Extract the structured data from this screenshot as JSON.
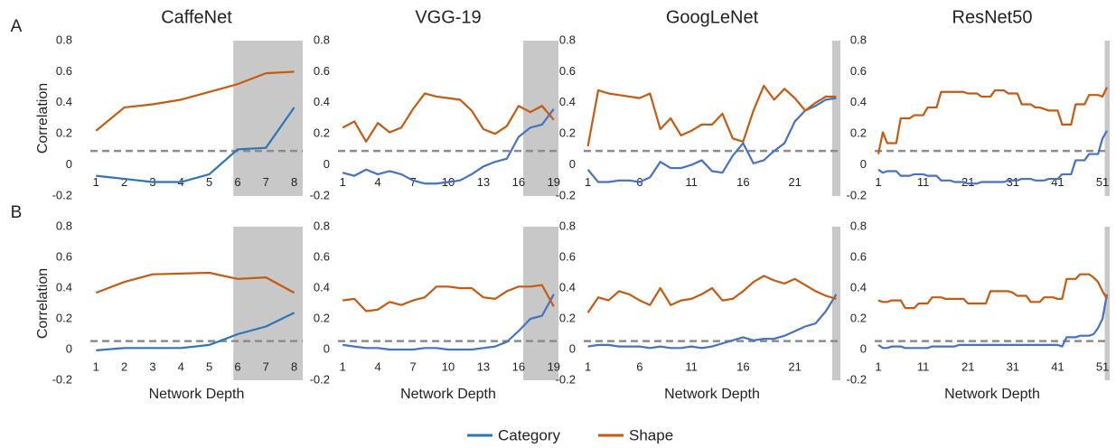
{
  "chart_data": [
    {
      "type": "line",
      "title": "CaffeNet",
      "panel_label": "A",
      "y_label": "Correlation",
      "x": [
        1,
        2,
        3,
        4,
        5,
        6,
        7,
        8
      ],
      "xlim": [
        0.8,
        8.3
      ],
      "xticks": [
        1,
        2,
        3,
        4,
        5,
        6,
        7,
        8
      ],
      "ylim": [
        -0.2,
        0.8
      ],
      "yticks": [
        -0.2,
        0,
        0.2,
        0.4,
        0.6,
        0.8
      ],
      "reference_line": 0.09,
      "shaded_range": [
        5.85,
        8.3
      ],
      "series": [
        {
          "name": "Category",
          "color": "#2e75b6",
          "values": [
            -0.07,
            -0.09,
            -0.11,
            -0.11,
            -0.06,
            0.1,
            0.11,
            0.37
          ]
        },
        {
          "name": "Shape",
          "color": "#c55a11",
          "values": [
            0.22,
            0.37,
            0.39,
            0.42,
            0.47,
            0.52,
            0.59,
            0.6
          ]
        }
      ]
    },
    {
      "type": "line",
      "title": "VGG-19",
      "x": [
        1,
        2,
        3,
        4,
        5,
        6,
        7,
        8,
        9,
        10,
        11,
        12,
        13,
        14,
        15,
        16,
        17,
        18,
        19
      ],
      "xlim": [
        0.6,
        19.4
      ],
      "xticks": [
        1,
        4,
        7,
        10,
        13,
        16,
        19
      ],
      "ylim": [
        -0.2,
        0.8
      ],
      "yticks": [
        -0.2,
        0,
        0.2,
        0.4,
        0.6,
        0.8
      ],
      "reference_line": 0.09,
      "shaded_range": [
        16.4,
        19.4
      ],
      "series": [
        {
          "name": "Category",
          "color": "#4472c4",
          "values": [
            -0.05,
            -0.07,
            -0.03,
            -0.06,
            -0.04,
            -0.06,
            -0.1,
            -0.12,
            -0.12,
            -0.11,
            -0.1,
            -0.06,
            -0.01,
            0.02,
            0.04,
            0.18,
            0.24,
            0.26,
            0.36
          ]
        },
        {
          "name": "Shape",
          "color": "#c55a11",
          "values": [
            0.24,
            0.28,
            0.15,
            0.27,
            0.21,
            0.24,
            0.36,
            0.46,
            0.44,
            0.43,
            0.42,
            0.35,
            0.23,
            0.2,
            0.25,
            0.38,
            0.34,
            0.38,
            0.29
          ]
        }
      ]
    },
    {
      "type": "line",
      "title": "GoogLeNet",
      "x": [
        1,
        2,
        3,
        4,
        5,
        6,
        7,
        8,
        9,
        10,
        11,
        12,
        13,
        14,
        15,
        16,
        17,
        18,
        19,
        20,
        21,
        22,
        23,
        24,
        25
      ],
      "xlim": [
        0.6,
        25.4
      ],
      "xticks": [
        1,
        6,
        11,
        16,
        21
      ],
      "ylim": [
        -0.2,
        0.8
      ],
      "yticks": [
        -0.2,
        0,
        0.2,
        0.4,
        0.6,
        0.8
      ],
      "reference_line": 0.09,
      "shaded_range": [
        24.6,
        25.4
      ],
      "series": [
        {
          "name": "Category",
          "color": "#4472c4",
          "values": [
            -0.03,
            -0.11,
            -0.11,
            -0.1,
            -0.1,
            -0.11,
            -0.08,
            0.02,
            -0.02,
            -0.02,
            0.0,
            0.03,
            -0.04,
            -0.05,
            0.06,
            0.14,
            0.01,
            0.03,
            0.09,
            0.14,
            0.28,
            0.35,
            0.38,
            0.42,
            0.43
          ]
        },
        {
          "name": "Shape",
          "color": "#c55a11",
          "values": [
            0.12,
            0.48,
            0.46,
            0.45,
            0.44,
            0.43,
            0.46,
            0.23,
            0.3,
            0.19,
            0.22,
            0.26,
            0.26,
            0.33,
            0.17,
            0.15,
            0.35,
            0.51,
            0.42,
            0.49,
            0.43,
            0.35,
            0.4,
            0.44,
            0.44
          ]
        }
      ]
    },
    {
      "type": "line",
      "title": "ResNet50",
      "x": [
        1,
        2,
        3,
        4,
        5,
        6,
        7,
        8,
        9,
        10,
        11,
        12,
        13,
        14,
        15,
        16,
        17,
        18,
        19,
        20,
        21,
        22,
        23,
        24,
        25,
        26,
        27,
        28,
        29,
        30,
        31,
        32,
        33,
        34,
        35,
        36,
        37,
        38,
        39,
        40,
        41,
        42,
        43,
        44,
        45,
        46,
        47,
        48,
        49,
        50,
        51,
        52
      ],
      "xlim": [
        0.2,
        52.6
      ],
      "xticks": [
        1,
        11,
        21,
        31,
        41,
        51
      ],
      "ylim": [
        -0.2,
        0.8
      ],
      "yticks": [
        -0.2,
        0,
        0.2,
        0.4,
        0.6,
        0.8
      ],
      "reference_line": 0.09,
      "shaded_range": [
        51.5,
        52.6
      ],
      "series": [
        {
          "name": "Category",
          "color": "#4472c4",
          "values": [
            -0.03,
            -0.05,
            -0.04,
            -0.04,
            -0.04,
            -0.07,
            -0.07,
            -0.07,
            -0.06,
            -0.06,
            -0.06,
            -0.07,
            -0.07,
            -0.07,
            -0.1,
            -0.1,
            -0.1,
            -0.11,
            -0.11,
            -0.11,
            -0.12,
            -0.12,
            -0.12,
            -0.11,
            -0.11,
            -0.11,
            -0.11,
            -0.11,
            -0.11,
            -0.1,
            -0.1,
            -0.1,
            -0.09,
            -0.09,
            -0.09,
            -0.1,
            -0.1,
            -0.1,
            -0.09,
            -0.09,
            -0.09,
            -0.06,
            -0.06,
            -0.06,
            0.03,
            0.03,
            0.03,
            0.07,
            0.07,
            0.07,
            0.17,
            0.22
          ]
        },
        {
          "name": "Shape",
          "color": "#c55a11",
          "values": [
            0.07,
            0.21,
            0.14,
            0.14,
            0.14,
            0.3,
            0.3,
            0.3,
            0.32,
            0.32,
            0.32,
            0.37,
            0.37,
            0.37,
            0.47,
            0.47,
            0.47,
            0.47,
            0.47,
            0.47,
            0.46,
            0.46,
            0.46,
            0.44,
            0.44,
            0.44,
            0.48,
            0.48,
            0.48,
            0.46,
            0.46,
            0.46,
            0.39,
            0.39,
            0.39,
            0.37,
            0.37,
            0.36,
            0.35,
            0.35,
            0.35,
            0.26,
            0.26,
            0.26,
            0.39,
            0.39,
            0.39,
            0.45,
            0.45,
            0.45,
            0.44,
            0.5
          ]
        }
      ]
    },
    {
      "type": "line",
      "panel_label": "B",
      "y_label": "Correlation",
      "x_label": "Network Depth",
      "x": [
        1,
        2,
        3,
        4,
        5,
        6,
        7,
        8
      ],
      "xlim": [
        0.8,
        8.3
      ],
      "xticks": [
        1,
        2,
        3,
        4,
        5,
        6,
        7,
        8
      ],
      "ylim": [
        -0.2,
        0.8
      ],
      "yticks": [
        -0.2,
        0,
        0.2,
        0.4,
        0.6,
        0.8
      ],
      "reference_line": 0.055,
      "shaded_range": [
        5.85,
        8.3
      ],
      "series": [
        {
          "name": "Category",
          "color": "#2e75b6",
          "values": [
            -0.005,
            0.01,
            0.01,
            0.01,
            0.03,
            0.1,
            0.15,
            0.24
          ]
        },
        {
          "name": "Shape",
          "color": "#c55a11",
          "values": [
            0.37,
            0.44,
            0.49,
            0.495,
            0.5,
            0.46,
            0.47,
            0.37
          ]
        }
      ]
    },
    {
      "type": "line",
      "x_label": "Network Depth",
      "x": [
        1,
        2,
        3,
        4,
        5,
        6,
        7,
        8,
        9,
        10,
        11,
        12,
        13,
        14,
        15,
        16,
        17,
        18,
        19
      ],
      "xlim": [
        0.6,
        19.4
      ],
      "xticks": [
        1,
        4,
        7,
        10,
        13,
        16,
        19
      ],
      "ylim": [
        -0.2,
        0.8
      ],
      "yticks": [
        -0.2,
        0,
        0.2,
        0.4,
        0.6,
        0.8
      ],
      "reference_line": 0.055,
      "shaded_range": [
        16.4,
        19.4
      ],
      "series": [
        {
          "name": "Category",
          "color": "#4472c4",
          "values": [
            0.03,
            0.02,
            0.01,
            0.01,
            0.0,
            0.0,
            0.0,
            0.01,
            0.01,
            0.0,
            0.0,
            0.0,
            0.01,
            0.02,
            0.05,
            0.12,
            0.2,
            0.22,
            0.36
          ]
        },
        {
          "name": "Shape",
          "color": "#c55a11",
          "values": [
            0.32,
            0.33,
            0.25,
            0.26,
            0.31,
            0.29,
            0.32,
            0.34,
            0.41,
            0.41,
            0.4,
            0.4,
            0.34,
            0.33,
            0.38,
            0.41,
            0.41,
            0.42,
            0.28
          ]
        }
      ]
    },
    {
      "type": "line",
      "x_label": "Network Depth",
      "x": [
        1,
        2,
        3,
        4,
        5,
        6,
        7,
        8,
        9,
        10,
        11,
        12,
        13,
        14,
        15,
        16,
        17,
        18,
        19,
        20,
        21,
        22,
        23,
        24,
        25
      ],
      "xlim": [
        0.6,
        25.4
      ],
      "xticks": [
        1,
        6,
        11,
        16,
        21
      ],
      "ylim": [
        -0.2,
        0.8
      ],
      "yticks": [
        -0.2,
        0,
        0.2,
        0.4,
        0.6,
        0.8
      ],
      "reference_line": 0.055,
      "shaded_range": [
        24.6,
        25.4
      ],
      "series": [
        {
          "name": "Category",
          "color": "#4472c4",
          "values": [
            0.02,
            0.03,
            0.03,
            0.02,
            0.02,
            0.02,
            0.01,
            0.02,
            0.01,
            0.01,
            0.02,
            0.01,
            0.02,
            0.04,
            0.06,
            0.08,
            0.06,
            0.07,
            0.07,
            0.09,
            0.12,
            0.15,
            0.17,
            0.25,
            0.36
          ]
        },
        {
          "name": "Shape",
          "color": "#c55a11",
          "values": [
            0.24,
            0.34,
            0.32,
            0.38,
            0.36,
            0.32,
            0.29,
            0.4,
            0.29,
            0.32,
            0.33,
            0.36,
            0.4,
            0.32,
            0.33,
            0.38,
            0.44,
            0.48,
            0.45,
            0.43,
            0.46,
            0.42,
            0.38,
            0.35,
            0.33
          ]
        }
      ]
    },
    {
      "type": "line",
      "x_label": "Network Depth",
      "x": [
        1,
        2,
        3,
        4,
        5,
        6,
        7,
        8,
        9,
        10,
        11,
        12,
        13,
        14,
        15,
        16,
        17,
        18,
        19,
        20,
        21,
        22,
        23,
        24,
        25,
        26,
        27,
        28,
        29,
        30,
        31,
        32,
        33,
        34,
        35,
        36,
        37,
        38,
        39,
        40,
        41,
        42,
        43,
        44,
        45,
        46,
        47,
        48,
        49,
        50,
        51,
        52
      ],
      "xlim": [
        0.2,
        52.6
      ],
      "xticks": [
        1,
        11,
        21,
        31,
        41,
        51
      ],
      "ylim": [
        -0.2,
        0.8
      ],
      "yticks": [
        -0.2,
        0,
        0.2,
        0.4,
        0.6,
        0.8
      ],
      "reference_line": 0.055,
      "shaded_range": [
        51.5,
        52.6
      ],
      "series": [
        {
          "name": "Category",
          "color": "#4472c4",
          "values": [
            0.03,
            0.01,
            0.01,
            0.02,
            0.02,
            0.02,
            0.01,
            0.01,
            0.01,
            0.01,
            0.01,
            0.01,
            0.02,
            0.02,
            0.02,
            0.02,
            0.02,
            0.02,
            0.03,
            0.03,
            0.03,
            0.03,
            0.03,
            0.03,
            0.03,
            0.03,
            0.03,
            0.03,
            0.03,
            0.03,
            0.03,
            0.03,
            0.03,
            0.03,
            0.03,
            0.03,
            0.03,
            0.03,
            0.03,
            0.03,
            0.03,
            0.02,
            0.08,
            0.08,
            0.08,
            0.09,
            0.09,
            0.09,
            0.1,
            0.14,
            0.2,
            0.36
          ]
        },
        {
          "name": "Shape",
          "color": "#c55a11",
          "values": [
            0.32,
            0.31,
            0.31,
            0.32,
            0.32,
            0.32,
            0.27,
            0.27,
            0.27,
            0.3,
            0.3,
            0.3,
            0.34,
            0.34,
            0.34,
            0.33,
            0.33,
            0.33,
            0.33,
            0.33,
            0.3,
            0.3,
            0.3,
            0.3,
            0.3,
            0.38,
            0.38,
            0.38,
            0.38,
            0.38,
            0.37,
            0.35,
            0.35,
            0.35,
            0.31,
            0.31,
            0.31,
            0.34,
            0.34,
            0.34,
            0.33,
            0.33,
            0.46,
            0.46,
            0.46,
            0.49,
            0.49,
            0.49,
            0.47,
            0.44,
            0.38,
            0.33
          ]
        }
      ]
    }
  ]
}
